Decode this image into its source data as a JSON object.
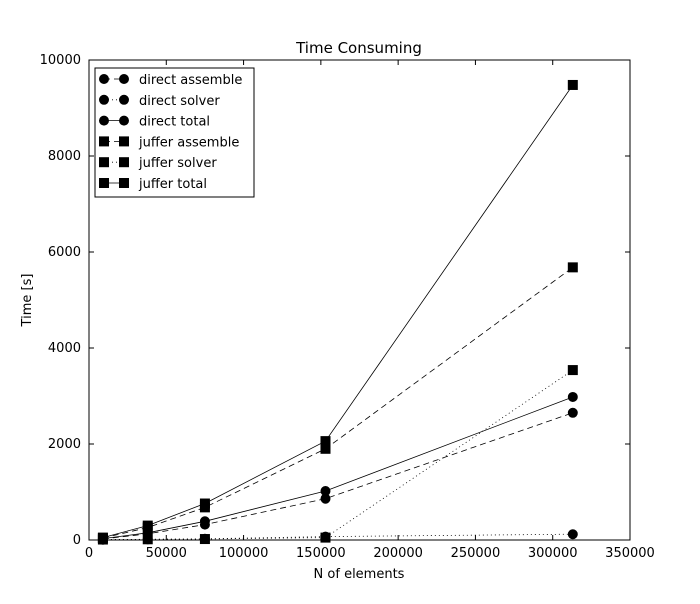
{
  "chart_data": {
    "type": "line",
    "title": "Time Consuming",
    "xlabel": "N of elements",
    "ylabel": "Time [s]",
    "xlim": [
      0,
      350000
    ],
    "ylim": [
      0,
      10000
    ],
    "xticks": [
      0,
      50000,
      100000,
      150000,
      200000,
      250000,
      300000,
      350000
    ],
    "yticks": [
      0,
      2000,
      4000,
      6000,
      8000,
      10000
    ],
    "grid": false,
    "legend_position": "top-left",
    "x": [
      9000,
      38000,
      75000,
      153000,
      313000
    ],
    "series": [
      {
        "name": "direct assemble",
        "marker": "circle",
        "line_style": "dashed",
        "values": [
          20,
          130,
          320,
          860,
          2650
        ]
      },
      {
        "name": "direct solver",
        "marker": "circle",
        "line_style": "dotted",
        "values": [
          5,
          15,
          25,
          70,
          120
        ]
      },
      {
        "name": "direct total",
        "marker": "circle",
        "line_style": "solid",
        "values": [
          30,
          150,
          390,
          1020,
          2980
        ]
      },
      {
        "name": "juffer assemble",
        "marker": "square",
        "line_style": "dashed",
        "values": [
          40,
          260,
          680,
          1900,
          5680
        ]
      },
      {
        "name": "juffer solver",
        "marker": "square",
        "line_style": "dotted",
        "values": [
          10,
          15,
          20,
          50,
          3540
        ]
      },
      {
        "name": "juffer total",
        "marker": "square",
        "line_style": "solid",
        "values": [
          50,
          300,
          760,
          2060,
          9480
        ]
      }
    ],
    "colors": {
      "line": "#000000",
      "marker": "#000000",
      "axes": "#000000",
      "background": "#ffffff"
    }
  }
}
